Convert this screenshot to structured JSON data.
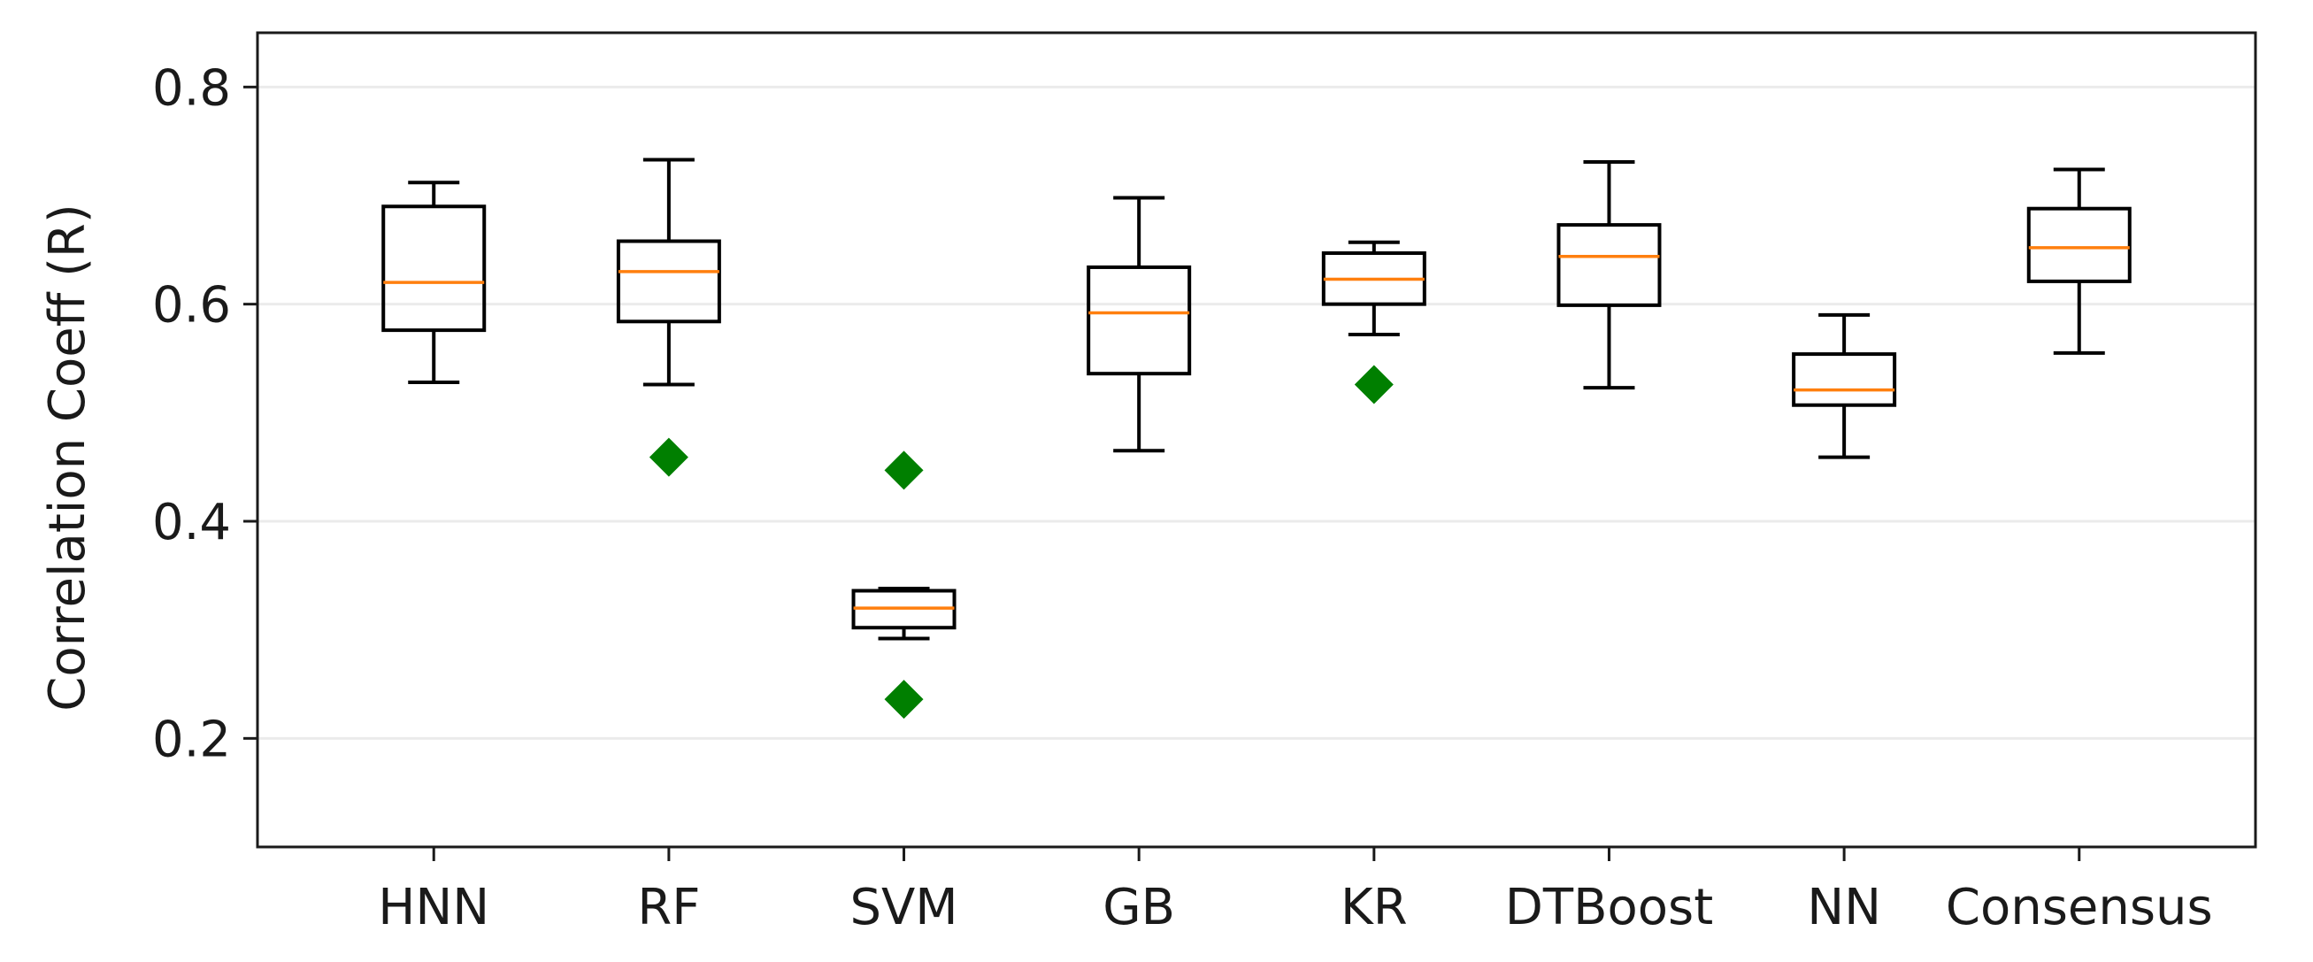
{
  "chart_data": {
    "type": "boxplot",
    "title": "",
    "xlabel": "",
    "ylabel": "Correlation Coeff (R)",
    "ylim": [
      0.1,
      0.85
    ],
    "yticks": [
      0.2,
      0.4,
      0.6,
      0.8
    ],
    "ytick_labels": [
      "0.2",
      "0.4",
      "0.6",
      "0.8"
    ],
    "grid": "horizontal",
    "categories": [
      "HNN",
      "RF",
      "SVM",
      "GB",
      "KR",
      "DTBoost",
      "NN",
      "Consensus"
    ],
    "boxes": [
      {
        "name": "HNN",
        "whisker_low": 0.528,
        "q1": 0.576,
        "median": 0.62,
        "q3": 0.69,
        "whisker_high": 0.712,
        "outliers": []
      },
      {
        "name": "RF",
        "whisker_low": 0.526,
        "q1": 0.584,
        "median": 0.63,
        "q3": 0.658,
        "whisker_high": 0.733,
        "outliers": [
          0.459
        ]
      },
      {
        "name": "SVM",
        "whisker_low": 0.292,
        "q1": 0.302,
        "median": 0.32,
        "q3": 0.336,
        "whisker_high": 0.338,
        "outliers": [
          0.447,
          0.236
        ]
      },
      {
        "name": "GB",
        "whisker_low": 0.465,
        "q1": 0.536,
        "median": 0.592,
        "q3": 0.634,
        "whisker_high": 0.698,
        "outliers": []
      },
      {
        "name": "KR",
        "whisker_low": 0.572,
        "q1": 0.6,
        "median": 0.623,
        "q3": 0.647,
        "whisker_high": 0.657,
        "outliers": [
          0.526
        ]
      },
      {
        "name": "DTBoost",
        "whisker_low": 0.523,
        "q1": 0.599,
        "median": 0.644,
        "q3": 0.673,
        "whisker_high": 0.731,
        "outliers": []
      },
      {
        "name": "NN",
        "whisker_low": 0.459,
        "q1": 0.507,
        "median": 0.521,
        "q3": 0.554,
        "whisker_high": 0.59,
        "outliers": []
      },
      {
        "name": "Consensus",
        "whisker_low": 0.555,
        "q1": 0.621,
        "median": 0.652,
        "q3": 0.688,
        "whisker_high": 0.724,
        "outliers": []
      }
    ],
    "colors": {
      "box_edge": "#000000",
      "median": "#ff7f0e",
      "outlier": "#007f00",
      "grid": "#ebebeb",
      "axes": "#1a1a1a"
    }
  }
}
